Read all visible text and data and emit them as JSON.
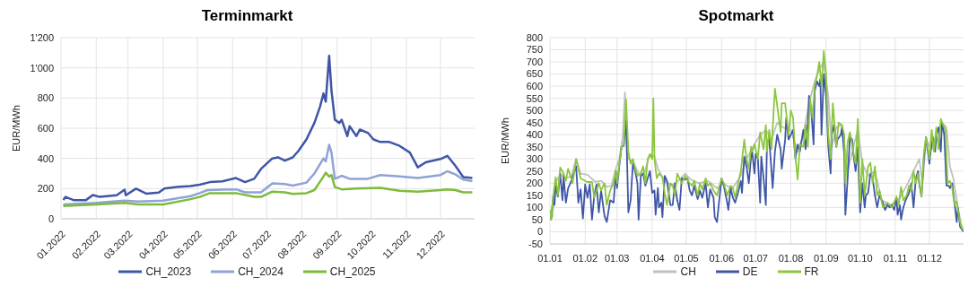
{
  "chart_data": [
    {
      "type": "line",
      "title": "Terminmarkt",
      "ylabel": "EUR/MWh",
      "xlim": [
        "2022-01-01",
        "2022-12-31"
      ],
      "xticks": [
        {
          "value": "2022-01-01",
          "label": "01.2022"
        },
        {
          "value": "2022-02-01",
          "label": "02.2022"
        },
        {
          "value": "2022-03-01",
          "label": "03.2022"
        },
        {
          "value": "2022-04-01",
          "label": "04.2022"
        },
        {
          "value": "2022-05-01",
          "label": "05.2022"
        },
        {
          "value": "2022-06-01",
          "label": "06.2022"
        },
        {
          "value": "2022-07-01",
          "label": "07.2022"
        },
        {
          "value": "2022-08-01",
          "label": "08.2022"
        },
        {
          "value": "2022-09-01",
          "label": "09.2022"
        },
        {
          "value": "2022-10-01",
          "label": "10.2022"
        },
        {
          "value": "2022-11-01",
          "label": "11.2022"
        },
        {
          "value": "2022-12-01",
          "label": "12.2022"
        }
      ],
      "ylim": [
        0,
        1200
      ],
      "yticks": [
        0,
        200,
        400,
        600,
        800,
        {
          "value": 1000,
          "label": "1'000"
        },
        {
          "value": 1200,
          "label": "1'200"
        }
      ],
      "grid": true,
      "legend": "bottom",
      "marker": "none",
      "line_style": "solid",
      "series": [
        {
          "name": "CH_2023",
          "color": "#3f56a6",
          "x": [
            "2022-01-03",
            "2022-01-05",
            "2022-01-12",
            "2022-01-23",
            "2022-01-29",
            "2022-02-04",
            "2022-02-19",
            "2022-02-26",
            "2022-02-27",
            "2022-03-08",
            "2022-03-17",
            "2022-03-28",
            "2022-04-02",
            "2022-04-13",
            "2022-04-25",
            "2022-05-03",
            "2022-05-12",
            "2022-05-23",
            "2022-06-04",
            "2022-06-12",
            "2022-06-20",
            "2022-06-26",
            "2022-07-06",
            "2022-07-11",
            "2022-07-17",
            "2022-07-24",
            "2022-07-29",
            "2022-08-05",
            "2022-08-12",
            "2022-08-17",
            "2022-08-20",
            "2022-08-22",
            "2022-08-25",
            "2022-08-27",
            "2022-08-30",
            "2022-09-03",
            "2022-09-05",
            "2022-09-10",
            "2022-09-12",
            "2022-09-18",
            "2022-09-21",
            "2022-09-28",
            "2022-10-03",
            "2022-10-09",
            "2022-10-17",
            "2022-10-26",
            "2022-11-04",
            "2022-11-11",
            "2022-11-18",
            "2022-11-24",
            "2022-12-01",
            "2022-12-07",
            "2022-12-14",
            "2022-12-21",
            "2022-12-29"
          ],
          "values": [
            125,
            145,
            124,
            124,
            157,
            145,
            156,
            193,
            156,
            200,
            167,
            174,
            200,
            211,
            217,
            226,
            243,
            248,
            270,
            243,
            265,
            330,
            400,
            407,
            385,
            407,
            450,
            526,
            635,
            743,
            830,
            776,
            1080,
            852,
            656,
            635,
            656,
            548,
            613,
            548,
            591,
            570,
            526,
            509,
            509,
            483,
            439,
            341,
            374,
            385,
            396,
            417,
            352,
            276,
            270
          ]
        },
        {
          "name": "CH_2024",
          "color": "#8fa3d6",
          "x": [
            "2022-01-03",
            "2022-02-01",
            "2022-02-26",
            "2022-03-10",
            "2022-04-01",
            "2022-04-25",
            "2022-05-03",
            "2022-05-10",
            "2022-06-04",
            "2022-06-12",
            "2022-06-26",
            "2022-07-06",
            "2022-07-17",
            "2022-07-24",
            "2022-08-05",
            "2022-08-12",
            "2022-08-20",
            "2022-08-22",
            "2022-08-25",
            "2022-08-27",
            "2022-08-30",
            "2022-09-05",
            "2022-09-12",
            "2022-09-28",
            "2022-10-09",
            "2022-10-26",
            "2022-11-11",
            "2022-12-01",
            "2022-12-07",
            "2022-12-14",
            "2022-12-21",
            "2022-12-29"
          ],
          "values": [
            95,
            105,
            120,
            115,
            120,
            150,
            170,
            190,
            195,
            175,
            175,
            235,
            230,
            220,
            240,
            300,
            400,
            380,
            490,
            440,
            265,
            285,
            265,
            265,
            290,
            280,
            270,
            290,
            315,
            295,
            260,
            250
          ]
        },
        {
          "name": "CH_2025",
          "color": "#7dbb3c",
          "x": [
            "2022-01-03",
            "2022-02-01",
            "2022-02-26",
            "2022-03-10",
            "2022-04-01",
            "2022-04-25",
            "2022-05-03",
            "2022-05-12",
            "2022-06-04",
            "2022-06-20",
            "2022-06-26",
            "2022-07-06",
            "2022-07-17",
            "2022-07-24",
            "2022-08-05",
            "2022-08-12",
            "2022-08-20",
            "2022-08-22",
            "2022-08-25",
            "2022-08-27",
            "2022-08-30",
            "2022-09-05",
            "2022-09-18",
            "2022-10-09",
            "2022-10-26",
            "2022-11-11",
            "2022-12-01",
            "2022-12-07",
            "2022-12-14",
            "2022-12-21",
            "2022-12-29"
          ],
          "values": [
            85,
            95,
            105,
            95,
            95,
            130,
            145,
            170,
            170,
            145,
            145,
            180,
            175,
            165,
            170,
            190,
            280,
            305,
            280,
            290,
            210,
            195,
            200,
            205,
            185,
            180,
            190,
            195,
            190,
            175,
            175
          ]
        }
      ]
    },
    {
      "type": "line",
      "title": "Spotmarkt",
      "ylabel": "EUR/MWh",
      "xlim": [
        "--01-01",
        "--12-31"
      ],
      "xticks": [
        {
          "value": "--01-01",
          "label": "01.01"
        },
        {
          "value": "--02-01",
          "label": "01.02"
        },
        {
          "value": "--03-01",
          "label": "01.03"
        },
        {
          "value": "--04-01",
          "label": "01.04"
        },
        {
          "value": "--05-01",
          "label": "01.05"
        },
        {
          "value": "--06-01",
          "label": "01.06"
        },
        {
          "value": "--07-01",
          "label": "01.07"
        },
        {
          "value": "--08-01",
          "label": "01.08"
        },
        {
          "value": "--09-01",
          "label": "01.09"
        },
        {
          "value": "--10-01",
          "label": "01.10"
        },
        {
          "value": "--11-01",
          "label": "01.11"
        },
        {
          "value": "--12-01",
          "label": "01.12"
        }
      ],
      "ylim": [
        -50,
        800
      ],
      "yticks": [
        -50,
        0,
        50,
        100,
        150,
        200,
        250,
        300,
        350,
        400,
        450,
        500,
        550,
        600,
        650,
        700,
        750,
        800
      ],
      "grid": true,
      "legend": "bottom",
      "marker": "none",
      "line_style": "solid",
      "series": [
        {
          "name": "CH",
          "color": "#c0c0c0",
          "x": [
            "--01-01",
            "--01-03",
            "--01-06",
            "--01-10",
            "--01-15",
            "--01-20",
            "--01-24",
            "--01-28",
            "--02-03",
            "--02-10",
            "--02-15",
            "--02-20",
            "--02-24",
            "--02-28",
            "--03-03",
            "--03-06",
            "--03-08",
            "--03-11",
            "--03-15",
            "--03-20",
            "--03-25",
            "--03-30",
            "--04-03",
            "--04-06",
            "--04-12",
            "--04-18",
            "--04-24",
            "--04-30",
            "--05-05",
            "--05-12",
            "--05-20",
            "--05-28",
            "--06-03",
            "--06-10",
            "--06-18",
            "--06-23",
            "--06-30",
            "--07-05",
            "--07-10",
            "--07-15",
            "--07-20",
            "--07-25",
            "--08-01",
            "--08-07",
            "--08-12",
            "--08-17",
            "--08-22",
            "--08-26",
            "--08-30",
            "--09-03",
            "--09-06",
            "--09-10",
            "--09-15",
            "--09-20",
            "--09-25",
            "--09-29",
            "--10-03",
            "--10-08",
            "--10-14",
            "--10-20",
            "--10-28",
            "--11-05",
            "--11-12",
            "--11-17",
            "--11-22",
            "--11-25",
            "--11-28",
            "--12-03",
            "--12-08",
            "--12-12",
            "--12-16",
            "--12-19",
            "--12-22",
            "--12-26",
            "--12-29",
            "--12-31"
          ],
          "values": [
            90,
            60,
            200,
            240,
            220,
            230,
            300,
            240,
            235,
            205,
            210,
            185,
            190,
            260,
            300,
            390,
            575,
            300,
            290,
            240,
            240,
            320,
            310,
            260,
            210,
            190,
            210,
            240,
            215,
            200,
            210,
            180,
            200,
            175,
            230,
            300,
            360,
            400,
            420,
            380,
            450,
            430,
            420,
            330,
            400,
            530,
            620,
            670,
            700,
            555,
            350,
            430,
            440,
            250,
            350,
            420,
            280,
            230,
            250,
            130,
            110,
            140,
            200,
            250,
            300,
            200,
            380,
            340,
            410,
            450,
            430,
            270,
            220,
            100,
            30,
            5
          ]
        },
        {
          "name": "DE",
          "color": "#3f56a6",
          "x": [
            "--01-01",
            "--01-02",
            "--01-04",
            "--01-05",
            "--01-06",
            "--01-08",
            "--01-10",
            "--01-12",
            "--01-13",
            "--01-15",
            "--01-17",
            "--01-19",
            "--01-24",
            "--01-26",
            "--01-28",
            "--01-30",
            "--02-01",
            "--02-03",
            "--02-05",
            "--02-07",
            "--02-09",
            "--02-11",
            "--02-13",
            "--02-15",
            "--02-18",
            "--02-20",
            "--02-23",
            "--02-26",
            "--02-28",
            "--03-01",
            "--03-03",
            "--03-05",
            "--03-07",
            "--03-09",
            "--03-11",
            "--03-13",
            "--03-15",
            "--03-17",
            "--03-19",
            "--03-20",
            "--03-22",
            "--03-24",
            "--03-26",
            "--03-28",
            "--03-30",
            "--04-01",
            "--04-03",
            "--04-04",
            "--04-06",
            "--04-07",
            "--04-09",
            "--04-10",
            "--04-12",
            "--04-14",
            "--04-17",
            "--04-19",
            "--04-21",
            "--04-23",
            "--04-25",
            "--04-27",
            "--04-30",
            "--05-02",
            "--05-04",
            "--05-06",
            "--05-08",
            "--05-11",
            "--05-13",
            "--05-15",
            "--05-18",
            "--05-20",
            "--05-22",
            "--05-25",
            "--05-26",
            "--05-28",
            "--06-01",
            "--06-03",
            "--06-06",
            "--06-07",
            "--06-09",
            "--06-11",
            "--06-13",
            "--06-16",
            "--06-18",
            "--06-19",
            "--06-21",
            "--06-23",
            "--06-25",
            "--06-27",
            "--06-28",
            "--06-30",
            "--07-01",
            "--07-03",
            "--07-05",
            "--07-06",
            "--07-08",
            "--07-10",
            "--07-11",
            "--07-13",
            "--07-15",
            "--07-16",
            "--07-18",
            "--07-20",
            "--07-23",
            "--07-24",
            "--07-27",
            "--07-28",
            "--07-30",
            "--08-01",
            "--08-03",
            "--08-05",
            "--08-07",
            "--08-09",
            "--08-12",
            "--08-14",
            "--08-16",
            "--08-17",
            "--08-19",
            "--08-21",
            "--08-22",
            "--08-24",
            "--08-26",
            "--08-27",
            "--08-28",
            "--08-30",
            "--09-01",
            "--09-03",
            "--09-05",
            "--09-06",
            "--09-08",
            "--09-10",
            "--09-11",
            "--09-14",
            "--09-15",
            "--09-17",
            "--09-18",
            "--09-20",
            "--09-22",
            "--09-24",
            "--09-25",
            "--09-27",
            "--09-29",
            "--09-30",
            "--10-01",
            "--10-03",
            "--10-05",
            "--10-06",
            "--10-08",
            "--10-10",
            "--10-12",
            "--10-14",
            "--10-16",
            "--10-18",
            "--10-21",
            "--10-23",
            "--10-25",
            "--10-27",
            "--10-29",
            "--10-31",
            "--11-02",
            "--11-03",
            "--11-05",
            "--11-06",
            "--11-08",
            "--11-10",
            "--11-13",
            "--11-15",
            "--11-17",
            "--11-19",
            "--11-21",
            "--11-22",
            "--11-24",
            "--11-26",
            "--11-28",
            "--12-01",
            "--12-02",
            "--12-04",
            "--12-06",
            "--12-07",
            "--12-09",
            "--12-11",
            "--12-12",
            "--12-14",
            "--12-16",
            "--12-18",
            "--12-19",
            "--12-21",
            "--12-23",
            "--12-25",
            "--12-26",
            "--12-28",
            "--12-31"
          ],
          "values": [
            80,
            50,
            150,
            110,
            190,
            145,
            240,
            130,
            230,
            120,
            180,
            200,
            270,
            120,
            175,
            55,
            195,
            140,
            195,
            50,
            150,
            195,
            80,
            170,
            65,
            40,
            130,
            120,
            250,
            180,
            270,
            350,
            355,
            460,
            80,
            130,
            280,
            250,
            200,
            50,
            230,
            240,
            190,
            220,
            250,
            160,
            170,
            70,
            180,
            100,
            120,
            60,
            230,
            210,
            110,
            110,
            200,
            130,
            90,
            220,
            215,
            220,
            170,
            150,
            190,
            135,
            170,
            140,
            200,
            100,
            175,
            140,
            60,
            40,
            220,
            190,
            120,
            90,
            180,
            140,
            120,
            170,
            210,
            160,
            310,
            270,
            200,
            310,
            330,
            240,
            320,
            300,
            120,
            310,
            220,
            110,
            370,
            380,
            250,
            180,
            330,
            400,
            340,
            260,
            380,
            470,
            380,
            400,
            420,
            300,
            360,
            330,
            420,
            340,
            450,
            560,
            500,
            360,
            580,
            620,
            600,
            630,
            400,
            650,
            560,
            350,
            240,
            400,
            440,
            350,
            380,
            400,
            430,
            320,
            70,
            220,
            390,
            380,
            320,
            250,
            350,
            200,
            80,
            200,
            100,
            150,
            160,
            240,
            220,
            150,
            100,
            150,
            120,
            90,
            110,
            100,
            110,
            90,
            140,
            70,
            110,
            50,
            100,
            130,
            160,
            200,
            100,
            220,
            250,
            200,
            145,
            300,
            390,
            280,
            330,
            390,
            330,
            400,
            430,
            330,
            450,
            400,
            190,
            190,
            180,
            200,
            120,
            40,
            100,
            20,
            0
          ]
        },
        {
          "name": "FR",
          "color": "#8cc63f",
          "x": [
            "--01-01",
            "--01-02",
            "--01-04",
            "--01-06",
            "--01-08",
            "--01-10",
            "--01-13",
            "--01-15",
            "--01-17",
            "--01-21",
            "--01-24",
            "--01-28",
            "--02-03",
            "--02-07",
            "--02-09",
            "--02-13",
            "--02-15",
            "--02-18",
            "--02-20",
            "--02-23",
            "--02-26",
            "--02-28",
            "--03-01",
            "--03-03",
            "--03-05",
            "--03-07",
            "--03-09",
            "--03-11",
            "--03-13",
            "--03-15",
            "--03-17",
            "--03-19",
            "--03-22",
            "--03-24",
            "--03-26",
            "--03-28",
            "--03-30",
            "--04-01",
            "--04-02",
            "--04-03",
            "--04-05",
            "--04-07",
            "--04-10",
            "--04-12",
            "--04-14",
            "--04-17",
            "--04-19",
            "--04-21",
            "--04-23",
            "--04-25",
            "--04-27",
            "--04-30",
            "--05-04",
            "--05-06",
            "--05-08",
            "--05-11",
            "--05-13",
            "--05-15",
            "--05-18",
            "--05-20",
            "--05-22",
            "--05-25",
            "--05-28",
            "--06-01",
            "--06-03",
            "--06-06",
            "--06-09",
            "--06-11",
            "--06-13",
            "--06-16",
            "--06-18",
            "--06-21",
            "--06-23",
            "--06-25",
            "--06-27",
            "--06-28",
            "--06-30",
            "--07-03",
            "--07-05",
            "--07-08",
            "--07-10",
            "--07-11",
            "--07-13",
            "--07-15",
            "--07-18",
            "--07-20",
            "--07-23",
            "--07-24",
            "--07-27",
            "--07-30",
            "--08-01",
            "--08-03",
            "--08-05",
            "--08-07",
            "--08-09",
            "--08-12",
            "--08-14",
            "--08-16",
            "--08-18",
            "--08-20",
            "--08-22",
            "--08-24",
            "--08-26",
            "--08-28",
            "--08-30",
            "--09-01",
            "--09-03",
            "--09-05",
            "--09-07",
            "--09-10",
            "--09-12",
            "--09-15",
            "--09-17",
            "--09-18",
            "--09-20",
            "--09-22",
            "--09-25",
            "--09-27",
            "--09-29",
            "--10-01",
            "--10-03",
            "--10-05",
            "--10-08",
            "--10-10",
            "--10-12",
            "--10-14",
            "--10-16",
            "--10-18",
            "--10-21",
            "--10-25",
            "--10-29",
            "--11-02",
            "--11-04",
            "--11-06",
            "--11-08",
            "--11-11",
            "--11-13",
            "--11-15",
            "--11-17",
            "--11-19",
            "--11-21",
            "--11-24",
            "--11-26",
            "--11-28",
            "--12-01",
            "--12-03",
            "--12-05",
            "--12-07",
            "--12-09",
            "--12-11",
            "--12-13",
            "--12-15",
            "--12-17",
            "--12-19",
            "--12-21",
            "--12-23",
            "--12-25",
            "--12-27",
            "--12-29",
            "--12-31"
          ],
          "values": [
            90,
            50,
            150,
            225,
            150,
            265,
            240,
            210,
            260,
            200,
            300,
            220,
            205,
            205,
            140,
            200,
            170,
            200,
            110,
            170,
            200,
            250,
            200,
            280,
            350,
            360,
            545,
            330,
            280,
            300,
            260,
            230,
            240,
            270,
            200,
            300,
            320,
            300,
            550,
            300,
            220,
            240,
            225,
            160,
            110,
            200,
            190,
            150,
            240,
            220,
            200,
            230,
            200,
            190,
            210,
            150,
            200,
            175,
            220,
            190,
            200,
            170,
            150,
            220,
            200,
            150,
            190,
            180,
            140,
            210,
            250,
            380,
            300,
            260,
            350,
            330,
            360,
            300,
            410,
            340,
            440,
            330,
            420,
            340,
            590,
            520,
            410,
            530,
            530,
            400,
            500,
            470,
            310,
            215,
            360,
            350,
            440,
            350,
            550,
            470,
            600,
            640,
            700,
            600,
            745,
            650,
            400,
            300,
            530,
            350,
            450,
            440,
            400,
            200,
            370,
            410,
            330,
            280,
            465,
            120,
            300,
            150,
            270,
            285,
            200,
            270,
            150,
            170,
            100,
            120,
            100,
            145,
            110,
            185,
            130,
            150,
            190,
            170,
            250,
            200,
            240,
            145,
            320,
            390,
            300,
            420,
            330,
            430,
            340,
            465,
            440,
            420,
            200,
            210,
            180,
            110,
            125,
            60,
            20,
            5
          ]
        }
      ]
    }
  ]
}
